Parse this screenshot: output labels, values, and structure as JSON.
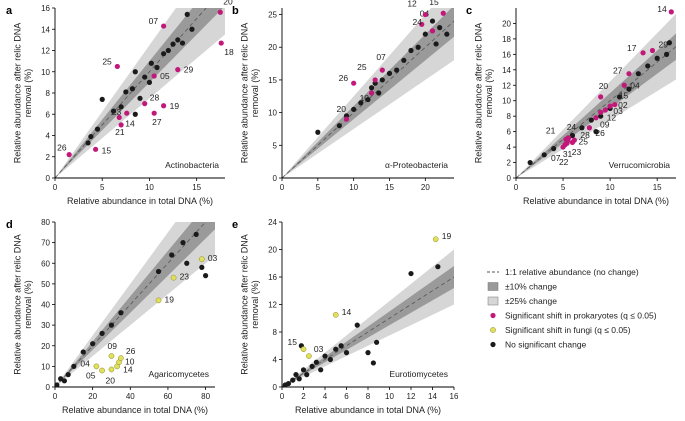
{
  "colors": {
    "prokaryote": "#c2187a",
    "fungi": "#e2e05a",
    "none": "#1a1a1a",
    "band10": "#9a9a9a",
    "band25": "#d6d6d6"
  },
  "legend": {
    "items": [
      {
        "kind": "dash",
        "label": "1:1 relative abundance (no change)"
      },
      {
        "kind": "band10",
        "label": "±10% change"
      },
      {
        "kind": "band25",
        "label": "±25% change"
      },
      {
        "kind": "prokaryote",
        "label": "Significant shift in prokaryotes (q ≤ 0.05)"
      },
      {
        "kind": "fungi",
        "label": "Significant shift in fungi (q ≤ 0.05)"
      },
      {
        "kind": "none",
        "label": "No significant change"
      }
    ]
  },
  "chart_data": [
    {
      "panel": "a",
      "type": "scatter",
      "title": "Actinobacteria",
      "xlabel": "Relative abundance in total DNA (%)",
      "ylabel": "Relative abundance after relic DNA removal (%)",
      "xlim": [
        0,
        18
      ],
      "ylim": [
        0,
        16
      ],
      "xticks": [
        0,
        5,
        10,
        15
      ],
      "yticks": [
        0,
        2,
        4,
        6,
        8,
        10,
        12,
        14,
        16
      ],
      "points": [
        {
          "x": 3.5,
          "y": 3.3,
          "c": "none"
        },
        {
          "x": 3.8,
          "y": 3.9,
          "c": "none"
        },
        {
          "x": 4.5,
          "y": 4.6,
          "c": "none"
        },
        {
          "x": 5.0,
          "y": 7.4,
          "c": "none"
        },
        {
          "x": 6.2,
          "y": 6.3,
          "c": "none"
        },
        {
          "x": 7.0,
          "y": 6.7,
          "c": "none"
        },
        {
          "x": 7.5,
          "y": 8.1,
          "c": "none"
        },
        {
          "x": 8.2,
          "y": 8.4,
          "c": "none"
        },
        {
          "x": 8.5,
          "y": 10.0,
          "c": "none"
        },
        {
          "x": 9.0,
          "y": 7.5,
          "c": "none"
        },
        {
          "x": 9.5,
          "y": 9.5,
          "c": "none"
        },
        {
          "x": 10.2,
          "y": 10.8,
          "c": "none"
        },
        {
          "x": 10.8,
          "y": 10.4,
          "c": "none"
        },
        {
          "x": 11.5,
          "y": 11.7,
          "c": "none"
        },
        {
          "x": 12.0,
          "y": 12.0,
          "c": "none"
        },
        {
          "x": 12.5,
          "y": 12.6,
          "c": "none"
        },
        {
          "x": 13.0,
          "y": 13.0,
          "c": "none"
        },
        {
          "x": 13.5,
          "y": 12.7,
          "c": "none"
        },
        {
          "x": 14.0,
          "y": 15.4,
          "c": "none"
        },
        {
          "x": 14.5,
          "y": 14.0,
          "c": "none"
        },
        {
          "x": 8.5,
          "y": 6.0,
          "c": "none"
        },
        {
          "x": 10.0,
          "y": 9.0,
          "c": "none"
        },
        {
          "x": 1.5,
          "y": 2.2,
          "c": "prokaryote",
          "label": "26"
        },
        {
          "x": 4.3,
          "y": 2.7,
          "c": "prokaryote",
          "label": "15"
        },
        {
          "x": 7.0,
          "y": 5.0,
          "c": "prokaryote",
          "label": "21"
        },
        {
          "x": 6.8,
          "y": 5.7,
          "c": "prokaryote",
          "label": "14"
        },
        {
          "x": 7.6,
          "y": 6.1,
          "c": "prokaryote",
          "label": "23"
        },
        {
          "x": 6.6,
          "y": 10.5,
          "c": "prokaryote",
          "label": "25"
        },
        {
          "x": 11.5,
          "y": 14.3,
          "c": "prokaryote",
          "label": "07"
        },
        {
          "x": 10.5,
          "y": 9.6,
          "c": "prokaryote",
          "label": "05"
        },
        {
          "x": 9.5,
          "y": 7.0,
          "c": "prokaryote",
          "label": "28"
        },
        {
          "x": 10.5,
          "y": 6.1,
          "c": "prokaryote",
          "label": "27"
        },
        {
          "x": 11.5,
          "y": 6.8,
          "c": "prokaryote",
          "label": "19"
        },
        {
          "x": 13.0,
          "y": 10.2,
          "c": "prokaryote",
          "label": "29"
        },
        {
          "x": 17.5,
          "y": 15.6,
          "c": "prokaryote",
          "label": "20"
        },
        {
          "x": 17.6,
          "y": 12.7,
          "c": "prokaryote",
          "label": "18"
        }
      ]
    },
    {
      "panel": "b",
      "type": "scatter",
      "title": "α-Proteobacteria",
      "xlabel": "",
      "ylabel": "Relative abundance after relic DNA removal (%)",
      "xlim": [
        0,
        24
      ],
      "ylim": [
        0,
        26
      ],
      "xticks": [
        0,
        5,
        10,
        15,
        20
      ],
      "yticks": [
        0,
        5,
        10,
        15,
        20,
        25
      ],
      "points": [
        {
          "x": 5.0,
          "y": 7.0,
          "c": "none"
        },
        {
          "x": 8.0,
          "y": 8.0,
          "c": "none"
        },
        {
          "x": 9.0,
          "y": 9.5,
          "c": "none"
        },
        {
          "x": 10.0,
          "y": 10.5,
          "c": "none"
        },
        {
          "x": 11.0,
          "y": 11.5,
          "c": "none"
        },
        {
          "x": 12.0,
          "y": 12.0,
          "c": "none"
        },
        {
          "x": 12.5,
          "y": 13.8,
          "c": "none"
        },
        {
          "x": 13.0,
          "y": 14.5,
          "c": "none"
        },
        {
          "x": 13.5,
          "y": 13.0,
          "c": "none"
        },
        {
          "x": 14.0,
          "y": 15.0,
          "c": "none"
        },
        {
          "x": 15.0,
          "y": 16.0,
          "c": "none"
        },
        {
          "x": 16.0,
          "y": 16.5,
          "c": "none"
        },
        {
          "x": 17.0,
          "y": 18.0,
          "c": "none"
        },
        {
          "x": 18.0,
          "y": 19.5,
          "c": "none"
        },
        {
          "x": 19.0,
          "y": 20.0,
          "c": "none"
        },
        {
          "x": 20.0,
          "y": 22.0,
          "c": "none"
        },
        {
          "x": 21.0,
          "y": 24.0,
          "c": "none"
        },
        {
          "x": 22.0,
          "y": 23.0,
          "c": "none"
        },
        {
          "x": 23.0,
          "y": 22.0,
          "c": "none"
        },
        {
          "x": 21.5,
          "y": 20.5,
          "c": "none"
        },
        {
          "x": 9.0,
          "y": 9.0,
          "c": "prokaryote",
          "label": "20"
        },
        {
          "x": 10.0,
          "y": 14.5,
          "c": "prokaryote",
          "label": "26"
        },
        {
          "x": 12.5,
          "y": 13.0,
          "c": "prokaryote",
          "label": "10"
        },
        {
          "x": 13.0,
          "y": 15.0,
          "c": "prokaryote",
          "label": "25"
        },
        {
          "x": 14.0,
          "y": 16.5,
          "c": "prokaryote",
          "label": "07"
        },
        {
          "x": 19.5,
          "y": 23.5,
          "c": "prokaryote",
          "label": "04"
        },
        {
          "x": 20.0,
          "y": 25.0,
          "c": "prokaryote",
          "label": "12"
        },
        {
          "x": 22.5,
          "y": 25.2,
          "c": "prokaryote",
          "label": "15"
        },
        {
          "x": 21.0,
          "y": 22.5,
          "c": "prokaryote",
          "label": "24"
        }
      ]
    },
    {
      "panel": "c",
      "type": "scatter",
      "title": "Verrucomicrobia",
      "xlabel": "Relative abundance in total DNA (%)",
      "ylabel": "Relative abundance after relic DNA removal (%)",
      "xlim": [
        0,
        17
      ],
      "ylim": [
        0,
        22
      ],
      "xticks": [
        0,
        5,
        10,
        15
      ],
      "yticks": [
        0,
        2,
        4,
        6,
        8,
        10,
        12,
        14,
        16,
        18,
        20
      ],
      "points": [
        {
          "x": 1.5,
          "y": 2.0,
          "c": "none"
        },
        {
          "x": 3.0,
          "y": 3.0,
          "c": "none"
        },
        {
          "x": 4.0,
          "y": 3.8,
          "c": "none"
        },
        {
          "x": 6.0,
          "y": 5.5,
          "c": "none"
        },
        {
          "x": 7.0,
          "y": 6.5,
          "c": "none"
        },
        {
          "x": 8.0,
          "y": 7.5,
          "c": "none"
        },
        {
          "x": 9.0,
          "y": 8.0,
          "c": "none"
        },
        {
          "x": 10.0,
          "y": 9.0,
          "c": "none"
        },
        {
          "x": 11.0,
          "y": 10.5,
          "c": "none"
        },
        {
          "x": 12.0,
          "y": 11.5,
          "c": "none"
        },
        {
          "x": 13.0,
          "y": 13.5,
          "c": "none"
        },
        {
          "x": 14.0,
          "y": 14.5,
          "c": "none"
        },
        {
          "x": 15.0,
          "y": 15.5,
          "c": "none"
        },
        {
          "x": 16.0,
          "y": 16.0,
          "c": "none"
        },
        {
          "x": 16.3,
          "y": 17.5,
          "c": "none"
        },
        {
          "x": 8.5,
          "y": 6.0,
          "c": "none"
        },
        {
          "x": 5.0,
          "y": 4.0,
          "c": "prokaryote",
          "label": "07"
        },
        {
          "x": 5.2,
          "y": 4.3,
          "c": "prokaryote",
          "label": "22"
        },
        {
          "x": 5.4,
          "y": 4.5,
          "c": "prokaryote",
          "label": "31"
        },
        {
          "x": 5.5,
          "y": 4.8,
          "c": "prokaryote",
          "label": "23"
        },
        {
          "x": 5.3,
          "y": 5.0,
          "c": "prokaryote",
          "label": "21"
        },
        {
          "x": 5.6,
          "y": 5.2,
          "c": "prokaryote",
          "label": "24"
        },
        {
          "x": 6.0,
          "y": 4.6,
          "c": "prokaryote",
          "label": "25"
        },
        {
          "x": 6.2,
          "y": 4.9,
          "c": "prokaryote",
          "label": "28"
        },
        {
          "x": 7.8,
          "y": 6.5,
          "c": "prokaryote",
          "label": "26"
        },
        {
          "x": 8.5,
          "y": 7.8,
          "c": "prokaryote",
          "label": "09"
        },
        {
          "x": 9.0,
          "y": 8.5,
          "c": "prokaryote",
          "label": "12"
        },
        {
          "x": 9.5,
          "y": 8.8,
          "c": "prokaryote",
          "label": "03"
        },
        {
          "x": 10.0,
          "y": 9.3,
          "c": "prokaryote",
          "label": "02"
        },
        {
          "x": 10.5,
          "y": 9.5,
          "c": "prokaryote",
          "label": "15"
        },
        {
          "x": 9.0,
          "y": 10.5,
          "c": "prokaryote",
          "label": "20"
        },
        {
          "x": 11.5,
          "y": 12.0,
          "c": "prokaryote",
          "label": "04"
        },
        {
          "x": 12.0,
          "y": 13.5,
          "c": "prokaryote",
          "label": "27"
        },
        {
          "x": 13.5,
          "y": 16.2,
          "c": "prokaryote",
          "label": "17"
        },
        {
          "x": 14.5,
          "y": 16.5,
          "c": "prokaryote",
          "label": "29"
        },
        {
          "x": 16.5,
          "y": 21.5,
          "c": "prokaryote",
          "label": "14"
        }
      ]
    },
    {
      "panel": "d",
      "type": "scatter",
      "title": "Agaricomycetes",
      "xlabel": "Relative abundance in total DNA (%)",
      "ylabel": "Relative abundance after relic DNA removal (%)",
      "xlim": [
        0,
        85
      ],
      "ylim": [
        0,
        80
      ],
      "xticks": [
        0,
        20,
        40,
        60,
        80
      ],
      "yticks": [
        0,
        10,
        20,
        30,
        40,
        50,
        60,
        70,
        80
      ],
      "points": [
        {
          "x": 1.0,
          "y": 1.0,
          "c": "none"
        },
        {
          "x": 3.0,
          "y": 4.0,
          "c": "none"
        },
        {
          "x": 5.0,
          "y": 3.0,
          "c": "none"
        },
        {
          "x": 7.0,
          "y": 6.0,
          "c": "none"
        },
        {
          "x": 10.0,
          "y": 10.0,
          "c": "none"
        },
        {
          "x": 15.0,
          "y": 17.0,
          "c": "none"
        },
        {
          "x": 20.0,
          "y": 21.0,
          "c": "none"
        },
        {
          "x": 25.0,
          "y": 26.0,
          "c": "none"
        },
        {
          "x": 30.0,
          "y": 30.0,
          "c": "none"
        },
        {
          "x": 35.0,
          "y": 36.0,
          "c": "none"
        },
        {
          "x": 55.0,
          "y": 56.0,
          "c": "none"
        },
        {
          "x": 62.0,
          "y": 64.0,
          "c": "none"
        },
        {
          "x": 68.0,
          "y": 70.0,
          "c": "none"
        },
        {
          "x": 75.0,
          "y": 74.0,
          "c": "none"
        },
        {
          "x": 78.0,
          "y": 58.0,
          "c": "none"
        },
        {
          "x": 80.0,
          "y": 54.0,
          "c": "none"
        },
        {
          "x": 70.0,
          "y": 60.0,
          "c": "none"
        },
        {
          "x": 22.0,
          "y": 10.0,
          "c": "fungi",
          "label": "04"
        },
        {
          "x": 25.0,
          "y": 8.0,
          "c": "fungi",
          "label": "05"
        },
        {
          "x": 30.0,
          "y": 8.5,
          "c": "fungi",
          "label": "20"
        },
        {
          "x": 33.0,
          "y": 10.0,
          "c": "fungi",
          "label": "14"
        },
        {
          "x": 34.0,
          "y": 12.0,
          "c": "fungi",
          "label": "10"
        },
        {
          "x": 35.0,
          "y": 14.0,
          "c": "fungi",
          "label": "26"
        },
        {
          "x": 30.0,
          "y": 15.0,
          "c": "fungi",
          "label": "09"
        },
        {
          "x": 55.0,
          "y": 42.0,
          "c": "fungi",
          "label": "19"
        },
        {
          "x": 63.0,
          "y": 53.0,
          "c": "fungi",
          "label": "23"
        },
        {
          "x": 78.0,
          "y": 62.0,
          "c": "fungi",
          "label": "03"
        }
      ]
    },
    {
      "panel": "e",
      "type": "scatter",
      "title": "Eurotiomycetes",
      "xlabel": "Relative abundance in total DNA (%)",
      "ylabel": "Relative abundance after relic DNA removal (%)",
      "xlim": [
        0,
        16
      ],
      "ylim": [
        0,
        24
      ],
      "xticks": [
        0,
        2,
        4,
        6,
        8,
        10,
        12,
        14,
        16
      ],
      "yticks": [
        0,
        4,
        8,
        12,
        16,
        20,
        24
      ],
      "points": [
        {
          "x": 0.3,
          "y": 0.3,
          "c": "none"
        },
        {
          "x": 0.6,
          "y": 0.5,
          "c": "none"
        },
        {
          "x": 1.0,
          "y": 1.0,
          "c": "none"
        },
        {
          "x": 1.3,
          "y": 1.8,
          "c": "none"
        },
        {
          "x": 1.6,
          "y": 1.2,
          "c": "none"
        },
        {
          "x": 2.0,
          "y": 2.5,
          "c": "none"
        },
        {
          "x": 2.3,
          "y": 1.8,
          "c": "none"
        },
        {
          "x": 2.8,
          "y": 3.0,
          "c": "none"
        },
        {
          "x": 3.2,
          "y": 3.6,
          "c": "none"
        },
        {
          "x": 3.6,
          "y": 2.5,
          "c": "none"
        },
        {
          "x": 4.0,
          "y": 4.5,
          "c": "none"
        },
        {
          "x": 4.5,
          "y": 4.0,
          "c": "none"
        },
        {
          "x": 5.0,
          "y": 5.5,
          "c": "none"
        },
        {
          "x": 5.5,
          "y": 6.0,
          "c": "none"
        },
        {
          "x": 6.0,
          "y": 5.0,
          "c": "none"
        },
        {
          "x": 7.0,
          "y": 9.0,
          "c": "none"
        },
        {
          "x": 8.0,
          "y": 5.0,
          "c": "none"
        },
        {
          "x": 8.5,
          "y": 3.5,
          "c": "none"
        },
        {
          "x": 8.8,
          "y": 6.5,
          "c": "none"
        },
        {
          "x": 12.0,
          "y": 16.5,
          "c": "none"
        },
        {
          "x": 14.5,
          "y": 17.5,
          "c": "none"
        },
        {
          "x": 1.8,
          "y": 6.0,
          "c": "none"
        },
        {
          "x": 2.0,
          "y": 5.5,
          "c": "fungi",
          "label": "15"
        },
        {
          "x": 2.5,
          "y": 4.5,
          "c": "fungi",
          "label": "03"
        },
        {
          "x": 5.0,
          "y": 10.5,
          "c": "fungi",
          "label": "14"
        },
        {
          "x": 14.3,
          "y": 21.5,
          "c": "fungi",
          "label": "19"
        }
      ]
    }
  ]
}
